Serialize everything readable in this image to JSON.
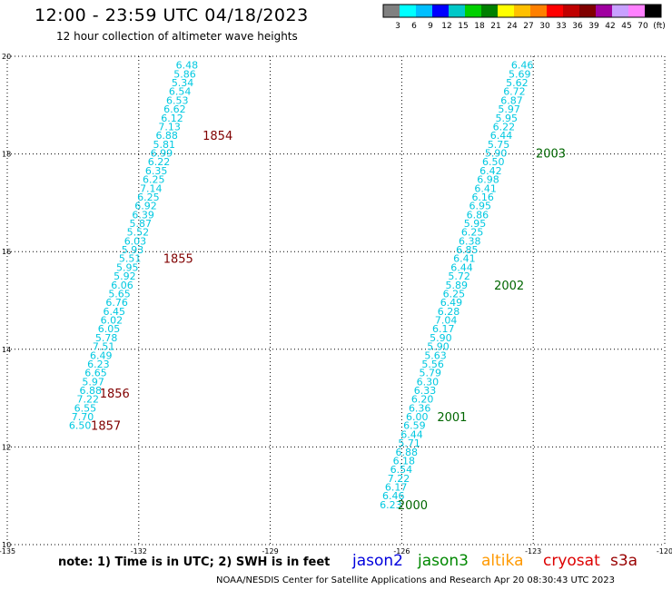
{
  "header": {
    "title": "12:00 - 23:59 UTC 04/18/2023",
    "subtitle": "12 hour collection of altimeter wave heights"
  },
  "legend": {
    "colors": [
      "#808080",
      "#00ffff",
      "#00bfff",
      "#0000ff",
      "#00c8c8",
      "#00d000",
      "#008000",
      "#ffff00",
      "#ffc000",
      "#ff8000",
      "#ff0000",
      "#c00000",
      "#800000",
      "#a000a0",
      "#c8a0ff",
      "#ff80ff",
      "#000000"
    ],
    "labels": [
      "3",
      "6",
      "9",
      "12",
      "15",
      "18",
      "21",
      "24",
      "27",
      "30",
      "33",
      "36",
      "39",
      "42",
      "45",
      "70",
      "(ft)"
    ]
  },
  "missions": [
    {
      "name": "jason2",
      "color": "#0000dd"
    },
    {
      "name": "jason3",
      "color": "#008800"
    },
    {
      "name": "altika",
      "color": "#ff9900"
    },
    {
      "name": "cryosat",
      "color": "#dd0000"
    },
    {
      "name": "s3a",
      "color": "#990000"
    }
  ],
  "footer": {
    "note": "note: 1) Time is in UTC; 2) SWH is in feet",
    "credit": "NOAA/NESDIS Center for Satellite Applications and Research   Apr 20 08:30:43 UTC 2023"
  },
  "chart_data": {
    "type": "scatter",
    "title": "12:00 - 23:59 UTC 04/18/2023",
    "subtitle": "12 hour collection of altimeter wave heights",
    "xlabel": "",
    "ylabel": "",
    "xlim": [
      -135,
      -120
    ],
    "ylim": [
      10,
      20
    ],
    "xticks": [
      "-135",
      "-132",
      "-129",
      "-126",
      "-123",
      "-120"
    ],
    "yticks": [
      "20",
      "18",
      "16",
      "14",
      "12",
      "10"
    ],
    "grid": true,
    "value_color": "#00c8e0",
    "time_color_s3a": "#800000",
    "time_color_jason3": "#006600",
    "tracks": [
      {
        "mission": "s3a",
        "points": [
          {
            "lon": -130.9,
            "lat": 19.82,
            "swh": "6.48"
          },
          {
            "lon": -130.95,
            "lat": 19.64,
            "swh": "5.86"
          },
          {
            "lon": -131.0,
            "lat": 19.46,
            "swh": "5.34"
          },
          {
            "lon": -131.06,
            "lat": 19.28,
            "swh": "6.54"
          },
          {
            "lon": -131.12,
            "lat": 19.1,
            "swh": "6.53"
          },
          {
            "lon": -131.18,
            "lat": 18.92,
            "swh": "6.62"
          },
          {
            "lon": -131.24,
            "lat": 18.74,
            "swh": "6.12"
          },
          {
            "lon": -131.3,
            "lat": 18.56,
            "swh": "7.13"
          },
          {
            "lon": -131.36,
            "lat": 18.38,
            "swh": "6.88"
          },
          {
            "lon": -131.42,
            "lat": 18.2,
            "swh": "5.81"
          },
          {
            "lon": -131.48,
            "lat": 18.02,
            "swh": "6.99"
          },
          {
            "lon": -131.54,
            "lat": 17.84,
            "swh": "6.22"
          },
          {
            "lon": -131.6,
            "lat": 17.66,
            "swh": "6.35"
          },
          {
            "lon": -131.66,
            "lat": 17.48,
            "swh": "6.25"
          },
          {
            "lon": -131.72,
            "lat": 17.3,
            "swh": "7.14"
          },
          {
            "lon": -131.78,
            "lat": 17.12,
            "swh": "6.25"
          },
          {
            "lon": -131.84,
            "lat": 16.94,
            "swh": "6.92"
          },
          {
            "lon": -131.9,
            "lat": 16.76,
            "swh": "6.39"
          },
          {
            "lon": -131.96,
            "lat": 16.58,
            "swh": "5.87"
          },
          {
            "lon": -132.02,
            "lat": 16.4,
            "swh": "5.52"
          },
          {
            "lon": -132.08,
            "lat": 16.22,
            "swh": "6.03"
          },
          {
            "lon": -132.14,
            "lat": 16.04,
            "swh": "5.93"
          },
          {
            "lon": -132.2,
            "lat": 15.86,
            "swh": "5.51"
          },
          {
            "lon": -132.26,
            "lat": 15.68,
            "swh": "5.95"
          },
          {
            "lon": -132.32,
            "lat": 15.5,
            "swh": "5.92"
          },
          {
            "lon": -132.38,
            "lat": 15.32,
            "swh": "6.06"
          },
          {
            "lon": -132.44,
            "lat": 15.14,
            "swh": "5.65"
          },
          {
            "lon": -132.5,
            "lat": 14.96,
            "swh": "6.76"
          },
          {
            "lon": -132.56,
            "lat": 14.78,
            "swh": "6.45"
          },
          {
            "lon": -132.62,
            "lat": 14.6,
            "swh": "6.02"
          },
          {
            "lon": -132.68,
            "lat": 14.42,
            "swh": "6.05"
          },
          {
            "lon": -132.74,
            "lat": 14.24,
            "swh": "5.78"
          },
          {
            "lon": -132.8,
            "lat": 14.06,
            "swh": "7.51"
          },
          {
            "lon": -132.86,
            "lat": 13.88,
            "swh": "6.49"
          },
          {
            "lon": -132.92,
            "lat": 13.7,
            "swh": "6.23"
          },
          {
            "lon": -132.98,
            "lat": 13.52,
            "swh": "6.65"
          },
          {
            "lon": -133.04,
            "lat": 13.34,
            "swh": "5.97"
          },
          {
            "lon": -133.1,
            "lat": 13.16,
            "swh": "6.88"
          },
          {
            "lon": -133.16,
            "lat": 12.98,
            "swh": "7.22"
          },
          {
            "lon": -133.22,
            "lat": 12.8,
            "swh": "6.55"
          },
          {
            "lon": -133.28,
            "lat": 12.62,
            "swh": "7.70"
          },
          {
            "lon": -133.34,
            "lat": 12.44,
            "swh": "6.50"
          }
        ],
        "times": [
          {
            "lon": -130.2,
            "lat": 18.38,
            "label": "1854"
          },
          {
            "lon": -131.1,
            "lat": 15.86,
            "label": "1855"
          },
          {
            "lon": -132.55,
            "lat": 13.1,
            "label": "1856"
          },
          {
            "lon": -132.75,
            "lat": 12.44,
            "label": "1857"
          }
        ]
      },
      {
        "mission": "jason3",
        "points": [
          {
            "lon": -123.25,
            "lat": 19.82,
            "swh": "6.46"
          },
          {
            "lon": -123.31,
            "lat": 19.64,
            "swh": "5.69"
          },
          {
            "lon": -123.37,
            "lat": 19.46,
            "swh": "5.62"
          },
          {
            "lon": -123.43,
            "lat": 19.28,
            "swh": "6.72"
          },
          {
            "lon": -123.49,
            "lat": 19.1,
            "swh": "6.87"
          },
          {
            "lon": -123.55,
            "lat": 18.92,
            "swh": "5.97"
          },
          {
            "lon": -123.61,
            "lat": 18.74,
            "swh": "5.95"
          },
          {
            "lon": -123.67,
            "lat": 18.56,
            "swh": "6.22"
          },
          {
            "lon": -123.73,
            "lat": 18.38,
            "swh": "6.44"
          },
          {
            "lon": -123.79,
            "lat": 18.2,
            "swh": "5.75"
          },
          {
            "lon": -123.85,
            "lat": 18.02,
            "swh": "5.90"
          },
          {
            "lon": -123.91,
            "lat": 17.84,
            "swh": "6.50"
          },
          {
            "lon": -123.97,
            "lat": 17.66,
            "swh": "6.42"
          },
          {
            "lon": -124.03,
            "lat": 17.48,
            "swh": "6.98"
          },
          {
            "lon": -124.09,
            "lat": 17.3,
            "swh": "6.41"
          },
          {
            "lon": -124.15,
            "lat": 17.12,
            "swh": "6.16"
          },
          {
            "lon": -124.21,
            "lat": 16.94,
            "swh": "6.95"
          },
          {
            "lon": -124.27,
            "lat": 16.76,
            "swh": "6.86"
          },
          {
            "lon": -124.33,
            "lat": 16.58,
            "swh": "5.95"
          },
          {
            "lon": -124.39,
            "lat": 16.4,
            "swh": "6.25"
          },
          {
            "lon": -124.45,
            "lat": 16.22,
            "swh": "6.38"
          },
          {
            "lon": -124.51,
            "lat": 16.04,
            "swh": "6.85"
          },
          {
            "lon": -124.57,
            "lat": 15.86,
            "swh": "6.41"
          },
          {
            "lon": -124.63,
            "lat": 15.68,
            "swh": "6.44"
          },
          {
            "lon": -124.69,
            "lat": 15.5,
            "swh": "5.72"
          },
          {
            "lon": -124.75,
            "lat": 15.32,
            "swh": "5.89"
          },
          {
            "lon": -124.81,
            "lat": 15.14,
            "swh": "6.25"
          },
          {
            "lon": -124.87,
            "lat": 14.96,
            "swh": "6.49"
          },
          {
            "lon": -124.93,
            "lat": 14.78,
            "swh": "6.28"
          },
          {
            "lon": -124.99,
            "lat": 14.6,
            "swh": "7.04"
          },
          {
            "lon": -125.05,
            "lat": 14.42,
            "swh": "6.17"
          },
          {
            "lon": -125.11,
            "lat": 14.24,
            "swh": "5.90"
          },
          {
            "lon": -125.17,
            "lat": 14.06,
            "swh": "5.90"
          },
          {
            "lon": -125.23,
            "lat": 13.88,
            "swh": "5.63"
          },
          {
            "lon": -125.29,
            "lat": 13.7,
            "swh": "5.56"
          },
          {
            "lon": -125.35,
            "lat": 13.52,
            "swh": "5.79"
          },
          {
            "lon": -125.41,
            "lat": 13.34,
            "swh": "6.30"
          },
          {
            "lon": -125.47,
            "lat": 13.16,
            "swh": "6.33"
          },
          {
            "lon": -125.53,
            "lat": 12.98,
            "swh": "6.20"
          },
          {
            "lon": -125.59,
            "lat": 12.8,
            "swh": "6.36"
          },
          {
            "lon": -125.65,
            "lat": 12.62,
            "swh": "6.00"
          },
          {
            "lon": -125.71,
            "lat": 12.44,
            "swh": "6.59"
          },
          {
            "lon": -125.77,
            "lat": 12.26,
            "swh": "6.44"
          },
          {
            "lon": -125.83,
            "lat": 12.08,
            "swh": "5.71"
          },
          {
            "lon": -125.89,
            "lat": 11.9,
            "swh": "6.88"
          },
          {
            "lon": -125.95,
            "lat": 11.72,
            "swh": "6.18"
          },
          {
            "lon": -126.01,
            "lat": 11.54,
            "swh": "6.54"
          },
          {
            "lon": -126.07,
            "lat": 11.36,
            "swh": "7.22"
          },
          {
            "lon": -126.13,
            "lat": 11.18,
            "swh": "6.17"
          },
          {
            "lon": -126.19,
            "lat": 11.0,
            "swh": "6.46"
          },
          {
            "lon": -126.25,
            "lat": 10.82,
            "swh": "6.23"
          }
        ],
        "times": [
          {
            "lon": -122.6,
            "lat": 18.02,
            "label": "2003"
          },
          {
            "lon": -123.55,
            "lat": 15.32,
            "label": "2002"
          },
          {
            "lon": -124.85,
            "lat": 12.62,
            "label": "2001"
          },
          {
            "lon": -125.75,
            "lat": 10.82,
            "label": "2000"
          }
        ]
      }
    ]
  }
}
